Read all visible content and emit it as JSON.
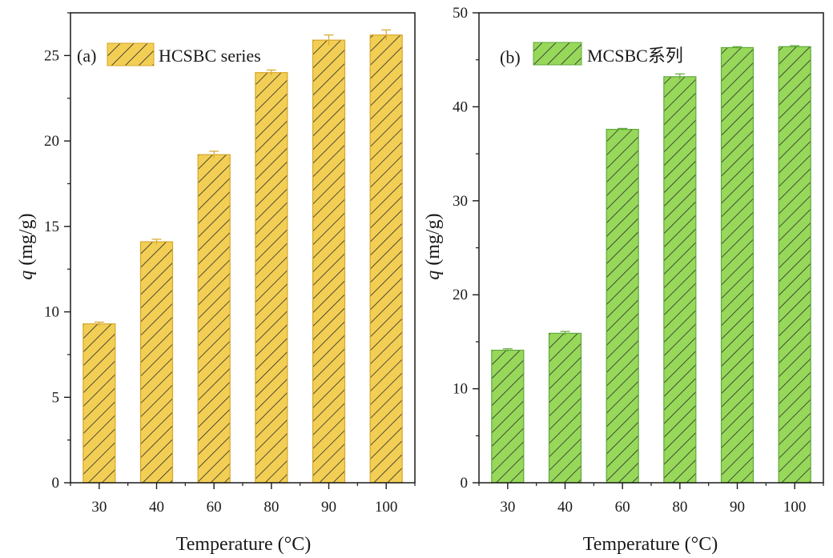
{
  "chart_data": [
    {
      "type": "bar",
      "panel_label": "(a)",
      "legend": "HCSBC series",
      "xlabel": "Temperature (°C)",
      "ylabel_italic": "q",
      "ylabel_rest": " (mg/g)",
      "categories": [
        "30",
        "40",
        "60",
        "80",
        "90",
        "100"
      ],
      "values": [
        9.3,
        14.1,
        19.2,
        24.0,
        25.9,
        26.2
      ],
      "errors": [
        0.1,
        0.15,
        0.2,
        0.15,
        0.3,
        0.3
      ],
      "ylim": [
        0,
        27.5
      ],
      "yticks": [
        0,
        5,
        10,
        15,
        20,
        25
      ],
      "bar_color": "#f2cf54",
      "bar_edge_color": "#d8a62a",
      "hatch_color": "#2a2a2a"
    },
    {
      "type": "bar",
      "panel_label": "(b)",
      "legend": "MCSBC系列",
      "xlabel": "Temperature (°C)",
      "ylabel_italic": "q",
      "ylabel_rest": " (mg/g)",
      "categories": [
        "30",
        "40",
        "60",
        "80",
        "90",
        "100"
      ],
      "values": [
        14.1,
        15.9,
        37.6,
        43.2,
        46.3,
        46.4
      ],
      "errors": [
        0.15,
        0.2,
        0.1,
        0.3,
        0.1,
        0.1
      ],
      "ylim": [
        0,
        50
      ],
      "yticks": [
        0,
        10,
        20,
        30,
        40,
        50
      ],
      "bar_color": "#97d85a",
      "bar_edge_color": "#5fa83a",
      "hatch_color": "#2a2a2a"
    }
  ]
}
